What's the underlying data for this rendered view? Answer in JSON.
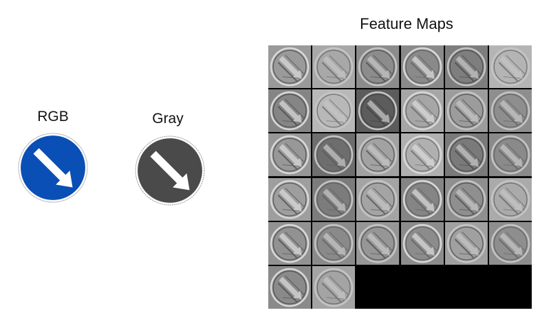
{
  "labels": {
    "rgb": "RGB",
    "gray": "Gray",
    "feature_maps": "Feature Maps"
  },
  "colors": {
    "rgb_sign_fill": "#0a4fb5",
    "gray_sign_fill": "#4a4a4a",
    "arrow": "#ffffff",
    "grid_background": "#000000"
  },
  "icons": {
    "rgb_sign": "diagonal-arrow-sign-icon",
    "gray_sign": "diagonal-arrow-sign-icon"
  },
  "feature_maps": {
    "rows": 6,
    "cols": 6,
    "count": 32,
    "tones": [
      "#9a9a9a",
      "#a8a8a8",
      "#8c8c8c",
      "#8a8a8a",
      "#7e7e7e",
      "#b4b4b4",
      "#858585",
      "#b8b8b8",
      "#5c5c5c",
      "#a6a6a6",
      "#9c9c9c",
      "#8e8e8e",
      "#989898",
      "#6e6e6e",
      "#a2a2a2",
      "#b0b0b0",
      "#7a7a7a",
      "#8a8a8a",
      "#9e9e9e",
      "#7c7c7c",
      "#a4a4a4",
      "#858585",
      "#8f8f8f",
      "#aaaaaa",
      "#929292",
      "#8a8a8a",
      "#969696",
      "#8c8c8c",
      "#a0a0a0",
      "#8e8e8e",
      "#8a8a8a",
      "#a4a4a4"
    ]
  }
}
